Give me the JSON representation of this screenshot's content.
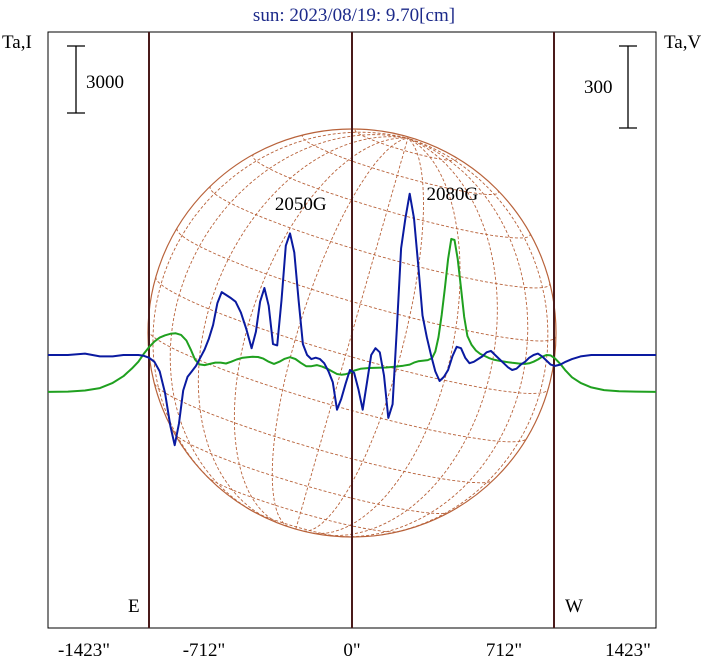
{
  "chart_data": {
    "type": "line",
    "title": "sun: 2023/08/19: 9.70[cm]",
    "left_axis_label": "Ta,I",
    "right_axis_label": "Ta,V",
    "left_scale_bar_label": "3000",
    "right_scale_bar_label": "300",
    "left_scale_bar_value": 3000,
    "right_scale_bar_value": 300,
    "x_tick_labels": [
      "-1423\"",
      "-712\"",
      "0\"",
      "712\"",
      "1423\""
    ],
    "x_tick_values": [
      -1423,
      -712,
      0,
      712,
      1423
    ],
    "xlim": [
      -1423,
      1423
    ],
    "limb_markers": [
      {
        "label": "E",
        "x": -950
      },
      {
        "label": "W",
        "x": 950
      }
    ],
    "annotations": [
      {
        "text": "2050G",
        "x": -240
      },
      {
        "text": "2080G",
        "x": 470
      }
    ],
    "colors": {
      "stokes_I": "#1fa01f",
      "stokes_V": "#0a1aa0",
      "disk_grid": "#b8623a",
      "frame": "#000000",
      "limb_lines": "#4a1a1a",
      "title": "#1c2a8a"
    },
    "series": [
      {
        "key": "I",
        "x": [
          -1423,
          -1330,
          -1250,
          -1180,
          -1120,
          -1070,
          -1030,
          -1000,
          -975,
          -950,
          -925,
          -900,
          -875,
          -850,
          -825,
          -800,
          -775,
          -755,
          -735,
          -715,
          -690,
          -665,
          -640,
          -615,
          -590,
          -565,
          -540,
          -515,
          -490,
          -465,
          -440,
          -415,
          -390,
          -365,
          -340,
          -315,
          -290,
          -265,
          -240,
          -215,
          -190,
          -165,
          -140,
          -115,
          -90,
          -70,
          -50,
          -30,
          -10,
          10,
          40,
          80,
          120,
          160,
          200,
          240,
          270,
          290,
          310,
          335,
          355,
          375,
          390,
          405,
          420,
          435,
          450,
          465,
          480,
          495,
          510,
          525,
          540,
          560,
          580,
          600,
          620,
          640,
          660,
          690,
          720,
          750,
          780,
          810,
          830,
          850,
          870,
          890,
          910,
          930,
          950,
          975,
          1000,
          1030,
          1070,
          1120,
          1180,
          1250,
          1330,
          1423
        ],
        "y": [
          -1650,
          -1640,
          -1590,
          -1480,
          -1250,
          -950,
          -600,
          -300,
          50,
          350,
          600,
          780,
          880,
          950,
          970,
          900,
          650,
          250,
          -200,
          -420,
          -450,
          -400,
          -340,
          -340,
          -380,
          -300,
          -200,
          -130,
          -100,
          -80,
          -90,
          -160,
          -300,
          -400,
          -300,
          -170,
          -100,
          -180,
          -350,
          -500,
          -500,
          -450,
          -520,
          -620,
          -750,
          -850,
          -880,
          -860,
          -800,
          -700,
          -620,
          -580,
          -570,
          -560,
          -530,
          -480,
          -430,
          -340,
          -280,
          -250,
          -230,
          -140,
          150,
          800,
          1800,
          3000,
          4300,
          5200,
          5150,
          4300,
          3000,
          1700,
          850,
          450,
          200,
          50,
          -40,
          -130,
          -200,
          -260,
          -310,
          -350,
          -380,
          -400,
          -370,
          -300,
          -200,
          -80,
          0,
          -20,
          -150,
          -400,
          -700,
          -1000,
          -1250,
          -1450,
          -1570,
          -1620,
          -1640,
          -1650
        ]
      },
      {
        "key": "V",
        "x": [
          -1423,
          -1330,
          -1250,
          -1180,
          -1120,
          -1070,
          -1030,
          -1000,
          -975,
          -950,
          -925,
          -900,
          -875,
          -850,
          -830,
          -810,
          -790,
          -770,
          -750,
          -730,
          -710,
          -690,
          -670,
          -650,
          -630,
          -610,
          -590,
          -570,
          -545,
          -520,
          -495,
          -470,
          -450,
          -430,
          -410,
          -390,
          -370,
          -350,
          -330,
          -310,
          -290,
          -270,
          -250,
          -230,
          -210,
          -190,
          -170,
          -150,
          -130,
          -110,
          -90,
          -70,
          -50,
          -30,
          -10,
          10,
          30,
          50,
          70,
          90,
          110,
          130,
          150,
          170,
          190,
          210,
          230,
          250,
          270,
          290,
          310,
          330,
          350,
          370,
          390,
          410,
          430,
          450,
          470,
          490,
          510,
          530,
          550,
          570,
          590,
          610,
          630,
          650,
          670,
          690,
          710,
          730,
          750,
          770,
          790,
          810,
          830,
          850,
          870,
          890,
          910,
          930,
          950,
          975,
          1000,
          1030,
          1070,
          1120,
          1180,
          1250,
          1330,
          1423
        ],
        "y": [
          0,
          0,
          5,
          -5,
          -5,
          0,
          0,
          0,
          -3,
          -10,
          -25,
          -60,
          -140,
          -260,
          -330,
          -250,
          -130,
          -80,
          -60,
          -40,
          -10,
          20,
          60,
          110,
          190,
          230,
          220,
          210,
          195,
          155,
          95,
          25,
          85,
          195,
          245,
          180,
          40,
          35,
          200,
          400,
          445,
          375,
          200,
          40,
          0,
          -15,
          -10,
          -15,
          -30,
          -60,
          -100,
          -200,
          -160,
          -105,
          -55,
          -65,
          -125,
          -200,
          -100,
          0,
          25,
          10,
          -75,
          -230,
          -180,
          100,
          390,
          500,
          590,
          500,
          330,
          145,
          65,
          0,
          -60,
          -95,
          -80,
          -55,
          -5,
          30,
          25,
          -10,
          -30,
          -25,
          -15,
          -5,
          10,
          15,
          0,
          -15,
          -30,
          -45,
          -55,
          -50,
          -35,
          -25,
          -10,
          0,
          5,
          -5,
          -20,
          -35,
          -40,
          -35,
          -25,
          -15,
          -5,
          0,
          0,
          0,
          0,
          0
        ]
      }
    ]
  }
}
